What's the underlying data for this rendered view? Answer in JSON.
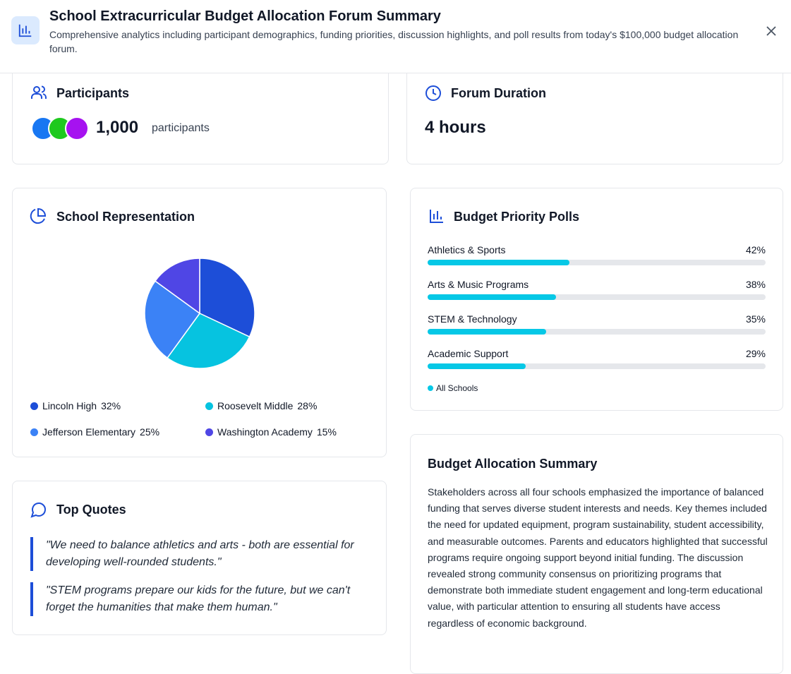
{
  "header": {
    "title": "School Extracurricular Budget Allocation Forum Summary",
    "subtitle": "Comprehensive analytics including participant demographics, funding priorities, discussion highlights, and poll results from today's $100,000 budget allocation forum."
  },
  "participants": {
    "title": "Participants",
    "count": "1,000",
    "unit": "participants"
  },
  "duration": {
    "title": "Forum Duration",
    "value": "4 hours"
  },
  "chart_data": [
    {
      "type": "pie",
      "title": "School Representation",
      "categories": [
        "Lincoln High",
        "Roosevelt Middle",
        "Jefferson Elementary",
        "Washington Academy"
      ],
      "values": [
        32,
        28,
        25,
        15
      ],
      "value_labels": [
        "32%",
        "28%",
        "25%",
        "15%"
      ],
      "colors": [
        "#1d4ed8",
        "#06c3e0",
        "#3b82f6",
        "#4f46e5"
      ]
    },
    {
      "type": "bar",
      "title": "Budget Priority Polls",
      "categories": [
        "Athletics & Sports",
        "Arts & Music Programs",
        "STEM & Technology",
        "Academic Support"
      ],
      "series": [
        {
          "name": "All Schools",
          "color": "#06c8e6",
          "values": [
            42,
            38,
            35,
            29
          ],
          "value_labels": [
            "42%",
            "38%",
            "35%",
            "29%"
          ]
        }
      ],
      "xlim": [
        0,
        100
      ]
    }
  ],
  "quotes": {
    "title": "Top Quotes",
    "items": [
      "\"We need to balance athletics and arts - both are essential for developing well-rounded students.\"",
      "\"STEM programs prepare our kids for the future, but we can't forget the humanities that make them human.\""
    ]
  },
  "summary": {
    "title": "Budget Allocation Summary",
    "text": "Stakeholders across all four schools emphasized the importance of balanced funding that serves diverse student interests and needs. Key themes included the need for updated equipment, program sustainability, student accessibility, and measurable outcomes. Parents and educators highlighted that successful programs require ongoing support beyond initial funding. The discussion revealed strong community consensus on prioritizing programs that demonstrate both immediate student engagement and long-term educational value, with particular attention to ensuring all students have access regardless of economic background."
  }
}
